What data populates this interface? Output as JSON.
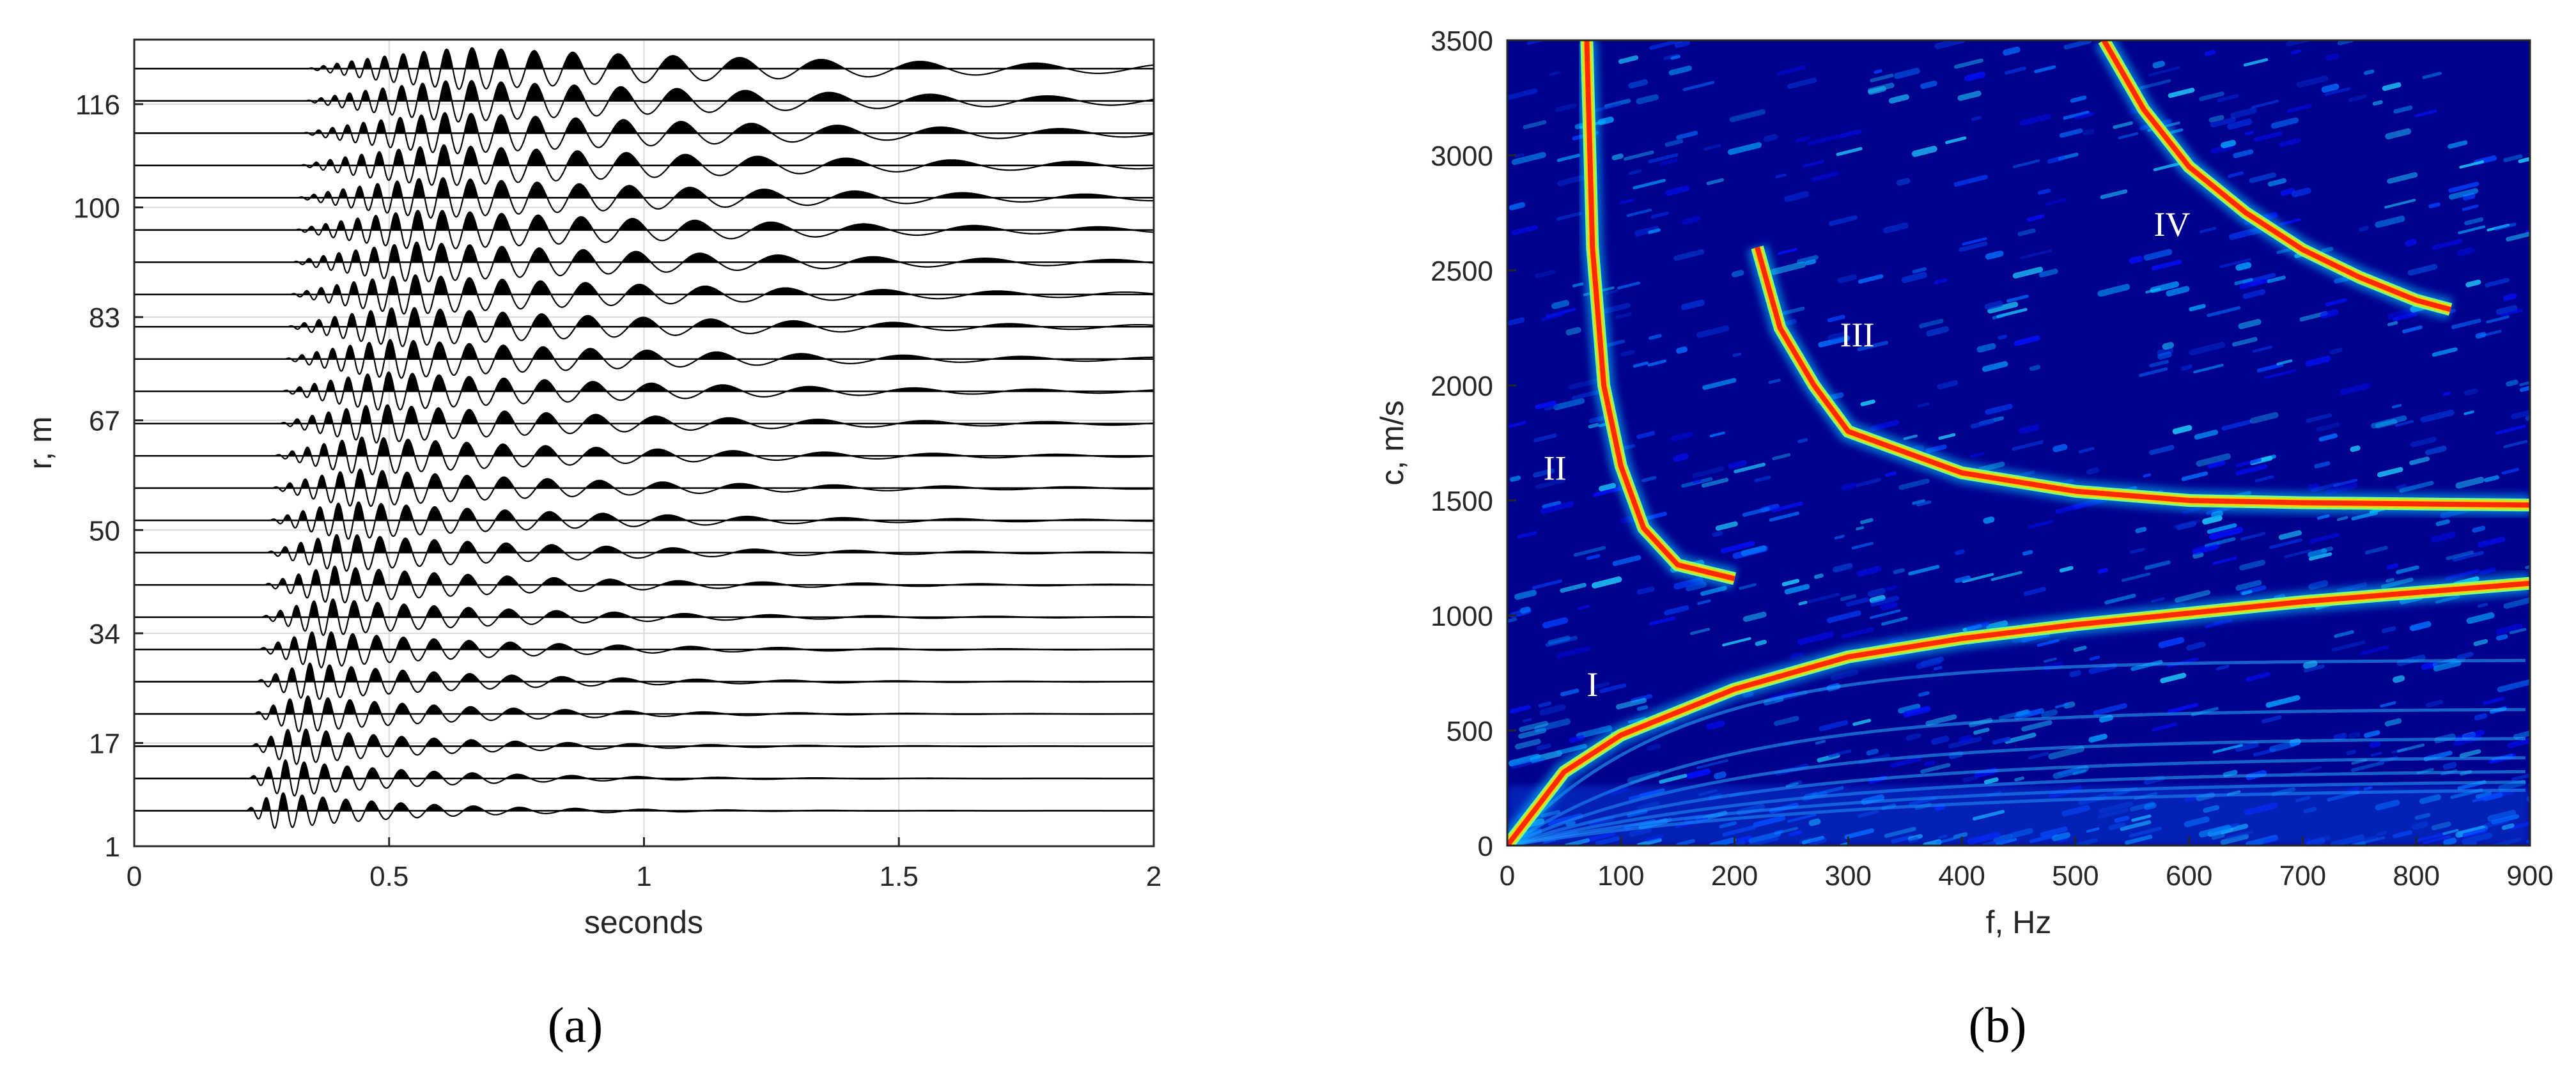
{
  "colors": {
    "trace": "#000000",
    "grid": "#d9d9d9",
    "axis": "#262626",
    "colormap": "jet",
    "background": "#00008f",
    "mode_label": "#ffffff"
  },
  "chart_data": [
    {
      "id": "a",
      "type": "line",
      "panel_label": "(a)",
      "xlabel": "seconds",
      "ylabel": "r, m",
      "xlim": [
        0,
        2
      ],
      "ylim": [
        1,
        126
      ],
      "grid": true,
      "x_ticks": [
        "0",
        "0.5",
        "1",
        "1.5",
        "2"
      ],
      "y_ticks": [
        "1",
        "17",
        "34",
        "50",
        "67",
        "83",
        "100",
        "116"
      ],
      "y_tick_values": [
        1,
        17,
        34,
        50,
        67,
        83,
        100,
        116
      ],
      "series": [
        {
          "r": 6.5,
          "arrival_s": 0.22
        },
        {
          "r": 11.5,
          "arrival_s": 0.225
        },
        {
          "r": 16.5,
          "arrival_s": 0.23
        },
        {
          "r": 21.5,
          "arrival_s": 0.235
        },
        {
          "r": 26.5,
          "arrival_s": 0.24
        },
        {
          "r": 31.5,
          "arrival_s": 0.245
        },
        {
          "r": 36.5,
          "arrival_s": 0.25
        },
        {
          "r": 41.5,
          "arrival_s": 0.255
        },
        {
          "r": 46.5,
          "arrival_s": 0.26
        },
        {
          "r": 51.5,
          "arrival_s": 0.265
        },
        {
          "r": 56.5,
          "arrival_s": 0.27
        },
        {
          "r": 61.5,
          "arrival_s": 0.275
        },
        {
          "r": 66.5,
          "arrival_s": 0.285
        },
        {
          "r": 71.5,
          "arrival_s": 0.29
        },
        {
          "r": 76.5,
          "arrival_s": 0.295
        },
        {
          "r": 81.5,
          "arrival_s": 0.3
        },
        {
          "r": 86.5,
          "arrival_s": 0.305
        },
        {
          "r": 91.5,
          "arrival_s": 0.31
        },
        {
          "r": 96.5,
          "arrival_s": 0.315
        },
        {
          "r": 101.5,
          "arrival_s": 0.32
        },
        {
          "r": 106.5,
          "arrival_s": 0.325
        },
        {
          "r": 111.5,
          "arrival_s": 0.33
        },
        {
          "r": 116.5,
          "arrival_s": 0.335
        },
        {
          "r": 121.5,
          "arrival_s": 0.34
        }
      ]
    },
    {
      "id": "b",
      "type": "heatmap",
      "panel_label": "(b)",
      "xlabel": "f, Hz",
      "ylabel": "c, m/s",
      "xlim": [
        0,
        900
      ],
      "ylim": [
        0,
        3500
      ],
      "x_ticks": [
        "0",
        "100",
        "200",
        "300",
        "400",
        "500",
        "600",
        "700",
        "800",
        "900"
      ],
      "y_ticks": [
        "0",
        "500",
        "1000",
        "1500",
        "2000",
        "2500",
        "3000",
        "3500"
      ],
      "mode_labels": [
        {
          "text": "I",
          "f": 75,
          "c": 650
        },
        {
          "text": "II",
          "f": 42,
          "c": 1590
        },
        {
          "text": "III",
          "f": 308,
          "c": 2170
        },
        {
          "text": "IV",
          "f": 585,
          "c": 2650
        }
      ],
      "ridges": [
        {
          "mode": "I",
          "points": [
            [
              0,
              0
            ],
            [
              50,
              320
            ],
            [
              100,
              480
            ],
            [
              200,
              680
            ],
            [
              300,
              820
            ],
            [
              400,
              900
            ],
            [
              500,
              960
            ],
            [
              600,
              1010
            ],
            [
              700,
              1060
            ],
            [
              800,
              1100
            ],
            [
              900,
              1140
            ]
          ]
        },
        {
          "mode": "II",
          "points": [
            [
              70,
              3500
            ],
            [
              75,
              2600
            ],
            [
              85,
              2000
            ],
            [
              100,
              1650
            ],
            [
              120,
              1380
            ],
            [
              150,
              1220
            ],
            [
              200,
              1160
            ]
          ]
        },
        {
          "mode": "III",
          "points": [
            [
              220,
              2600
            ],
            [
              240,
              2250
            ],
            [
              270,
              2000
            ],
            [
              300,
              1800
            ],
            [
              400,
              1620
            ],
            [
              500,
              1540
            ],
            [
              600,
              1500
            ],
            [
              700,
              1490
            ],
            [
              800,
              1485
            ],
            [
              900,
              1480
            ]
          ]
        },
        {
          "mode": "IV",
          "points": [
            [
              525,
              3500
            ],
            [
              560,
              3200
            ],
            [
              600,
              2950
            ],
            [
              650,
              2750
            ],
            [
              700,
              2590
            ],
            [
              750,
              2470
            ],
            [
              800,
              2370
            ],
            [
              830,
              2330
            ]
          ]
        }
      ]
    }
  ]
}
